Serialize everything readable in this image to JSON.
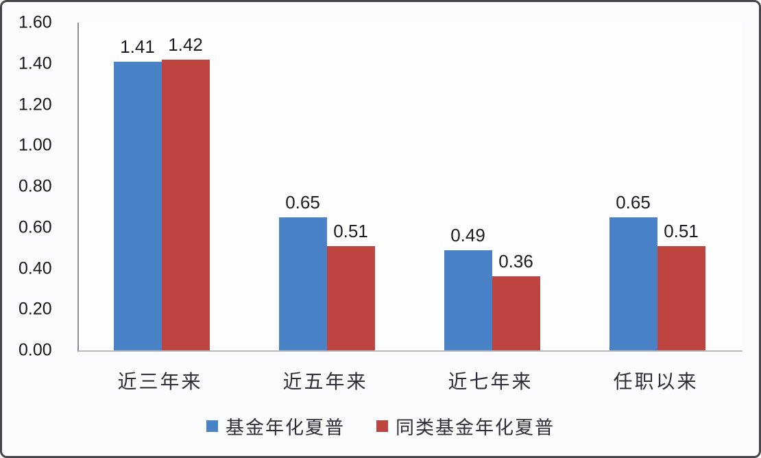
{
  "chart_data": {
    "type": "bar",
    "categories": [
      "近三年来",
      "近五年来",
      "近七年来",
      "任职以来"
    ],
    "series": [
      {
        "name": "基金年化夏普",
        "color": "#4a82c8",
        "values": [
          1.41,
          0.65,
          0.49,
          0.65
        ]
      },
      {
        "name": "同类基金年化夏普",
        "color": "#be4440",
        "values": [
          1.42,
          0.51,
          0.36,
          0.51
        ]
      }
    ],
    "title": "",
    "xlabel": "",
    "ylabel": "",
    "ylim": [
      0,
      1.6
    ],
    "ytick_step": 0.2,
    "ytick_labels": [
      "0.00",
      "0.20",
      "0.40",
      "0.60",
      "0.80",
      "1.00",
      "1.20",
      "1.40",
      "1.60"
    ],
    "value_label_decimals": 2,
    "grid": false,
    "legend_position": "bottom"
  }
}
